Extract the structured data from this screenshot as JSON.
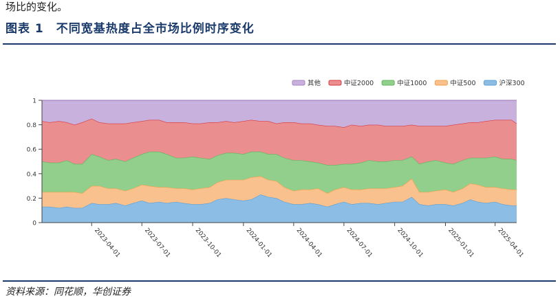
{
  "header": {
    "top_text": "场比的变化。",
    "figure_title": "图表 1　不同宽基热度占全市场比例时序变化"
  },
  "footer": {
    "source": "资料来源：同花顺，华创证券"
  },
  "chart_data": {
    "type": "area",
    "stacked": true,
    "normalized": true,
    "title": "",
    "xlabel": "",
    "ylabel": "",
    "ylim": [
      0,
      1
    ],
    "y_ticks": [
      "0",
      "0.2",
      "0.4",
      "0.6",
      "0.8",
      "1"
    ],
    "x_range": [
      "2023-01-01",
      "2025-05-10"
    ],
    "x_ticks": [
      "2023-04-01",
      "2023-07-01",
      "2023-10-01",
      "2024-01-01",
      "2024-04-01",
      "2024-07-01",
      "2024-10-01",
      "2025-01-01",
      "2025-04-01"
    ],
    "legend_position": "top-right",
    "grid": false,
    "x": [
      "2023-01-01",
      "2023-01-15",
      "2023-02-01",
      "2023-02-15",
      "2023-03-01",
      "2023-03-15",
      "2023-04-01",
      "2023-04-15",
      "2023-05-01",
      "2023-05-15",
      "2023-06-01",
      "2023-06-15",
      "2023-07-01",
      "2023-07-15",
      "2023-08-01",
      "2023-08-15",
      "2023-09-01",
      "2023-09-15",
      "2023-10-01",
      "2023-10-15",
      "2023-11-01",
      "2023-11-15",
      "2023-12-01",
      "2023-12-15",
      "2024-01-01",
      "2024-01-15",
      "2024-02-01",
      "2024-02-15",
      "2024-03-01",
      "2024-03-15",
      "2024-04-01",
      "2024-04-15",
      "2024-05-01",
      "2024-05-15",
      "2024-06-01",
      "2024-06-15",
      "2024-07-01",
      "2024-07-15",
      "2024-08-01",
      "2024-08-15",
      "2024-09-01",
      "2024-09-15",
      "2024-10-01",
      "2024-10-15",
      "2024-11-01",
      "2024-11-15",
      "2024-12-01",
      "2024-12-15",
      "2025-01-01",
      "2025-01-15",
      "2025-02-01",
      "2025-02-15",
      "2025-03-01",
      "2025-03-15",
      "2025-04-01",
      "2025-04-15",
      "2025-05-01",
      "2025-05-10"
    ],
    "series": [
      {
        "name": "沪深300",
        "color": "#5b9fd4",
        "fill": "#8cbde4",
        "values": [
          0.13,
          0.13,
          0.12,
          0.13,
          0.12,
          0.12,
          0.16,
          0.15,
          0.15,
          0.16,
          0.14,
          0.16,
          0.18,
          0.16,
          0.17,
          0.16,
          0.17,
          0.16,
          0.15,
          0.15,
          0.16,
          0.19,
          0.2,
          0.19,
          0.18,
          0.19,
          0.23,
          0.21,
          0.2,
          0.17,
          0.15,
          0.15,
          0.16,
          0.15,
          0.13,
          0.15,
          0.17,
          0.15,
          0.16,
          0.16,
          0.15,
          0.16,
          0.17,
          0.17,
          0.21,
          0.15,
          0.14,
          0.15,
          0.15,
          0.14,
          0.16,
          0.19,
          0.17,
          0.16,
          0.17,
          0.15,
          0.14,
          0.14
        ]
      },
      {
        "name": "中证500",
        "color": "#f5a04a",
        "fill": "#f9c18e",
        "values": [
          0.12,
          0.12,
          0.13,
          0.12,
          0.13,
          0.12,
          0.14,
          0.15,
          0.13,
          0.12,
          0.12,
          0.12,
          0.13,
          0.14,
          0.12,
          0.13,
          0.11,
          0.12,
          0.12,
          0.13,
          0.13,
          0.14,
          0.15,
          0.16,
          0.17,
          0.18,
          0.15,
          0.14,
          0.14,
          0.12,
          0.11,
          0.12,
          0.11,
          0.13,
          0.11,
          0.12,
          0.12,
          0.12,
          0.11,
          0.12,
          0.13,
          0.12,
          0.12,
          0.13,
          0.15,
          0.1,
          0.11,
          0.11,
          0.12,
          0.11,
          0.12,
          0.13,
          0.14,
          0.13,
          0.12,
          0.13,
          0.13,
          0.13
        ]
      },
      {
        "name": "中证1000",
        "color": "#5cb85c",
        "fill": "#92cf8c",
        "values": [
          0.25,
          0.24,
          0.24,
          0.26,
          0.23,
          0.24,
          0.26,
          0.24,
          0.23,
          0.24,
          0.24,
          0.25,
          0.25,
          0.28,
          0.29,
          0.27,
          0.25,
          0.25,
          0.27,
          0.25,
          0.23,
          0.22,
          0.22,
          0.22,
          0.21,
          0.21,
          0.2,
          0.21,
          0.22,
          0.24,
          0.25,
          0.24,
          0.23,
          0.21,
          0.23,
          0.2,
          0.19,
          0.21,
          0.22,
          0.23,
          0.22,
          0.22,
          0.22,
          0.21,
          0.18,
          0.23,
          0.25,
          0.25,
          0.22,
          0.23,
          0.23,
          0.21,
          0.22,
          0.24,
          0.25,
          0.24,
          0.25,
          0.24
        ]
      },
      {
        "name": "中证2000",
        "color": "#d6393c",
        "fill": "#ea8e8f",
        "values": [
          0.33,
          0.33,
          0.34,
          0.31,
          0.32,
          0.34,
          0.29,
          0.28,
          0.3,
          0.29,
          0.31,
          0.29,
          0.27,
          0.26,
          0.26,
          0.26,
          0.29,
          0.29,
          0.27,
          0.28,
          0.3,
          0.27,
          0.26,
          0.25,
          0.27,
          0.26,
          0.25,
          0.27,
          0.25,
          0.29,
          0.31,
          0.3,
          0.31,
          0.31,
          0.32,
          0.32,
          0.3,
          0.32,
          0.3,
          0.29,
          0.3,
          0.29,
          0.28,
          0.28,
          0.26,
          0.31,
          0.29,
          0.28,
          0.3,
          0.32,
          0.3,
          0.29,
          0.29,
          0.3,
          0.3,
          0.32,
          0.32,
          0.3
        ]
      },
      {
        "name": "其他",
        "color": "#a782c3",
        "fill": "#c9b1de",
        "values": [
          0.17,
          0.18,
          0.17,
          0.18,
          0.2,
          0.18,
          0.15,
          0.18,
          0.19,
          0.19,
          0.19,
          0.18,
          0.17,
          0.16,
          0.16,
          0.18,
          0.18,
          0.18,
          0.19,
          0.19,
          0.18,
          0.18,
          0.17,
          0.18,
          0.17,
          0.16,
          0.17,
          0.17,
          0.19,
          0.18,
          0.18,
          0.19,
          0.19,
          0.2,
          0.21,
          0.21,
          0.22,
          0.2,
          0.21,
          0.2,
          0.2,
          0.21,
          0.21,
          0.21,
          0.2,
          0.21,
          0.21,
          0.21,
          0.21,
          0.2,
          0.19,
          0.18,
          0.18,
          0.17,
          0.16,
          0.16,
          0.16,
          0.19
        ]
      }
    ]
  }
}
